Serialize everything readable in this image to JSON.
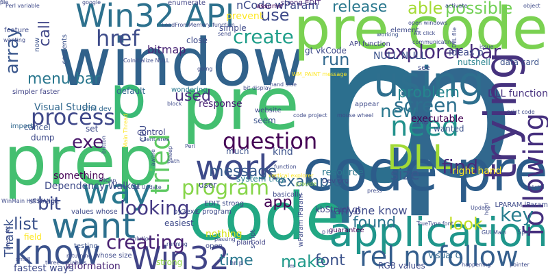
{
  "colors": {
    "background": "#ffffff",
    "palette": [
      "#440154",
      "#472d7b",
      "#3b528b",
      "#2c728e",
      "#21918c",
      "#28ae80",
      "#5ec962",
      "#addc30",
      "#fde725"
    ]
  },
  "words": [
    {
      "text": "p",
      "color": "#2c6f8e"
    },
    {
      "text": "p",
      "color": "#31688e"
    },
    {
      "text": "window",
      "color": "#31628b"
    },
    {
      "text": "code",
      "color": "#22a884"
    },
    {
      "text": "prep",
      "color": "#44bf70"
    },
    {
      "text": "pre code",
      "color": "#7ad151"
    },
    {
      "text": "pre",
      "color": "#44bf70"
    },
    {
      "text": "p",
      "color": "#3aba76"
    },
    {
      "text": "code pre",
      "color": "#2c5c8a"
    },
    {
      "text": "application",
      "color": "#1f968b"
    },
    {
      "text": "Win32 API",
      "color": "#2d718e"
    },
    {
      "text": "using",
      "color": "#2e6f8e"
    },
    {
      "text": "want",
      "color": "#2d708e"
    },
    {
      "text": "work",
      "color": "#3e4a89"
    },
    {
      "text": "know",
      "color": "#3b528b"
    },
    {
      "text": "way",
      "color": "#2a788e"
    },
    {
      "text": "DLL",
      "color": "#a2da37"
    },
    {
      "text": "trying",
      "color": "#46327e"
    },
    {
      "text": "Win32",
      "color": "#414487"
    },
    {
      "text": "rel nofollow",
      "color": "#355f8d"
    },
    {
      "text": "href",
      "color": "#3e4c8a"
    },
    {
      "text": "process",
      "color": "#3f4889"
    },
    {
      "text": "program",
      "color": "#86d549"
    },
    {
      "text": "tried",
      "color": "#5ec962"
    },
    {
      "text": "explorer bar",
      "color": "#472c7a"
    },
    {
      "text": "array",
      "color": "#39568c"
    },
    {
      "text": "need",
      "color": "#21918c"
    },
    {
      "text": "question",
      "color": "#440154"
    },
    {
      "text": "creating",
      "color": "#482071"
    },
    {
      "text": "following",
      "color": "#46307e"
    },
    {
      "text": "looking",
      "color": "#443983"
    },
    {
      "text": "create",
      "color": "#1f9e89"
    },
    {
      "text": "find",
      "color": "#472c7a"
    },
    {
      "text": "list",
      "color": "#3b528b"
    },
    {
      "text": "bit",
      "color": "#3e4a89"
    },
    {
      "text": "key",
      "color": "#287d8e"
    },
    {
      "text": "screen",
      "color": "#2d708e"
    },
    {
      "text": "exe",
      "color": "#48186a"
    },
    {
      "text": "menu bar",
      "color": "#2a778e"
    },
    {
      "text": "able",
      "color": "#a5db36"
    },
    {
      "text": "possible",
      "color": "#73d056"
    },
    {
      "text": "run",
      "color": "#31688e"
    },
    {
      "text": "use",
      "color": "#3e4a89"
    },
    {
      "text": "call",
      "color": "#404688"
    },
    {
      "text": "new",
      "color": "#2a788e"
    },
    {
      "text": "message",
      "color": "#375a8c"
    },
    {
      "text": "example",
      "color": "#33638d"
    },
    {
      "text": "size",
      "color": "#38588c"
    },
    {
      "text": "app",
      "color": "#440154"
    },
    {
      "text": "look",
      "color": "#c2df23"
    },
    {
      "text": "found",
      "color": "#2c728e"
    },
    {
      "text": "used",
      "color": "#46307e"
    },
    {
      "text": "problem",
      "color": "#25858e"
    },
    {
      "text": "make",
      "color": "#1f9a8a"
    },
    {
      "text": "font",
      "color": "#3b528b"
    },
    {
      "text": "time",
      "color": "#2a788e"
    },
    {
      "text": "release",
      "color": "#2a788e"
    },
    {
      "text": "bitmap",
      "color": "#482475"
    },
    {
      "text": "Thank",
      "color": "#3b528b"
    },
    {
      "text": "Dependency Walker",
      "color": "#3e4a89"
    },
    {
      "text": "anyone know",
      "color": "#3e4a89"
    },
    {
      "text": "information",
      "color": "#482475"
    },
    {
      "text": "Visual Studio",
      "color": "#31688e"
    },
    {
      "text": "system tray",
      "color": "#277f8e"
    },
    {
      "text": "strong EDIT",
      "color": "#482173"
    },
    {
      "text": "API function",
      "color": "#414487"
    },
    {
      "text": "NULL NULL",
      "color": "#3b528b"
    },
    {
      "text": "ideas p",
      "color": "#3e4a89"
    },
    {
      "text": "nutshell",
      "color": "#26828e"
    },
    {
      "text": "data card",
      "color": "#3b528b"
    },
    {
      "text": "kbStruct gt",
      "color": "#414487"
    },
    {
      "text": "LPARAM lParam",
      "color": "#3e4a89"
    },
    {
      "text": "resource",
      "color": "#2a788e"
    },
    {
      "text": "DLL function",
      "color": "#46307e"
    },
    {
      "text": "Spy",
      "color": "#3b528b"
    },
    {
      "text": "guarantee",
      "color": "#440154"
    },
    {
      "text": "plain old",
      "color": "#414487"
    },
    {
      "text": "Visual C",
      "color": "#31688e"
    },
    {
      "text": "fastest ways",
      "color": "#3e4a89"
    },
    {
      "text": "testing",
      "color": "#3b528b"
    },
    {
      "text": "nCode wParam",
      "color": "#3e4a89"
    },
    {
      "text": "prevent",
      "color": "#fde725"
    },
    {
      "text": "strong",
      "color": "#90d743"
    },
    {
      "text": "field",
      "color": "#fde725"
    },
    {
      "text": "nothing",
      "color": "#d8e219"
    },
    {
      "text": "much",
      "color": "#3b528b"
    },
    {
      "text": "seem",
      "color": "#3b528b"
    },
    {
      "text": "kind",
      "color": "#3b528b"
    },
    {
      "text": "something",
      "color": "#440154"
    },
    {
      "text": "user",
      "color": "#3e4a89"
    },
    {
      "text": "set",
      "color": "#3e4a89"
    },
    {
      "text": "control",
      "color": "#404688"
    },
    {
      "text": "default",
      "color": "#31688e"
    },
    {
      "text": "cancel",
      "color": "#3b528b"
    },
    {
      "text": "dump",
      "color": "#3e4a89"
    },
    {
      "text": "wondering",
      "color": "#2a788e"
    },
    {
      "text": "response",
      "color": "#482173"
    },
    {
      "text": "simple",
      "color": "#3e4a89"
    },
    {
      "text": "close",
      "color": "#3e4a89"
    },
    {
      "text": "assume",
      "color": "#440154"
    },
    {
      "text": "gt vkCode",
      "color": "#3e4a89"
    },
    {
      "text": "working",
      "color": "#3b528b"
    },
    {
      "text": "website",
      "color": "#3e4a89"
    },
    {
      "text": "Dev org",
      "color": "#3e4a89"
    },
    {
      "text": "executable",
      "color": "#440154"
    },
    {
      "text": "wanted",
      "color": "#3b528b"
    },
    {
      "text": "right hand",
      "color": "#fde725"
    },
    {
      "text": "provide",
      "color": "#8fd744"
    },
    {
      "text": "TrueType font",
      "color": "#3e4a89"
    },
    {
      "text": "RGB values",
      "color": "#3e4a89"
    },
    {
      "text": "enumerate",
      "color": "#414487"
    },
    {
      "text": "CoInitialize NULL",
      "color": "#3e4a89"
    },
    {
      "text": "now",
      "color": "#3b528b"
    },
    {
      "text": "contents",
      "color": "#3b528b"
    },
    {
      "text": "sfml dev",
      "color": "#31688e"
    },
    {
      "text": "import",
      "color": "#31688e"
    },
    {
      "text": "client area",
      "color": "#3b528b"
    },
    {
      "text": "simpler faster",
      "color": "#414487"
    },
    {
      "text": "sf Image",
      "color": "#3e4a89"
    },
    {
      "text": "values whose",
      "color": "#3e4a89"
    },
    {
      "text": "easiest",
      "color": "#3e4a89"
    },
    {
      "text": "solution",
      "color": "#414487"
    },
    {
      "text": "running",
      "color": "#3e4a89"
    },
    {
      "text": "whose size",
      "color": "#3e4a89"
    },
    {
      "text": "py2exe",
      "color": "#3e4a89"
    },
    {
      "text": "C program",
      "color": "#3e4a89"
    },
    {
      "text": "EDIT strong",
      "color": "#3e4a89"
    },
    {
      "text": "basically",
      "color": "#3e4a89"
    },
    {
      "text": "appear",
      "color": "#3e4a89"
    },
    {
      "text": "see",
      "color": "#3e4a89"
    },
    {
      "text": "feature",
      "color": "#3e4a89"
    },
    {
      "text": "open",
      "color": "#3e4a89"
    },
    {
      "text": "hr p",
      "color": "#3e4a89"
    },
    {
      "text": "p hr",
      "color": "#3e4a89"
    },
    {
      "text": "script",
      "color": "#3e4a89"
    },
    {
      "text": "match",
      "color": "#3e4a89"
    },
    {
      "text": "small",
      "color": "#3e4a89"
    },
    {
      "text": "element",
      "color": "#3e4a89"
    },
    {
      "text": "send",
      "color": "#3e4a89"
    },
    {
      "text": "CPU",
      "color": "#3e4a89"
    },
    {
      "text": "aware",
      "color": "#3e4a89"
    },
    {
      "text": "sleep",
      "color": "#3e4a89"
    },
    {
      "text": "bit display",
      "color": "#3e4a89"
    },
    {
      "text": "Main Thread",
      "color": "#fde725"
    },
    {
      "text": "wParam lParam",
      "color": "#3e4a89"
    },
    {
      "text": "function",
      "color": "#3e4a89"
    },
    {
      "text": "vertical explorer",
      "color": "#fde725"
    },
    {
      "text": "hand side",
      "color": "#3e4a89"
    },
    {
      "text": "Perl variable",
      "color": "#3e4a89"
    },
    {
      "text": "object",
      "color": "#3e4a89"
    },
    {
      "text": "issue",
      "color": "#3e4a89"
    },
    {
      "text": "going",
      "color": "#3e4a89"
    },
    {
      "text": "block",
      "color": "#3e4a89"
    },
    {
      "text": "pointer",
      "color": "#3e4a89"
    },
    {
      "text": "happening",
      "color": "#3e4a89"
    },
    {
      "text": "press",
      "color": "#3e4a89"
    },
    {
      "text": "mouse wheel",
      "color": "#3e4a89"
    },
    {
      "text": "amp",
      "color": "#3e4a89"
    },
    {
      "text": "google",
      "color": "#3e4a89"
    },
    {
      "text": "button",
      "color": "#3e4a89"
    },
    {
      "text": "AllCap",
      "color": "#3e4a89"
    },
    {
      "text": "WM_PAINT message",
      "color": "#fde725"
    },
    {
      "text": "code project",
      "color": "#3e4a89"
    },
    {
      "text": "print code",
      "color": "#3e4a89"
    },
    {
      "text": "DLL file",
      "color": "#3e4a89"
    },
    {
      "text": "communicating",
      "color": "#3e4a89"
    },
    {
      "text": "Alt click",
      "color": "#3e4a89"
    },
    {
      "text": "open windows",
      "color": "#3e4a89"
    },
    {
      "text": "LoadFromMemory function",
      "color": "#3e4a89"
    },
    {
      "text": "activate",
      "color": "#3e4a89"
    },
    {
      "text": "WinMain HINSTANCE",
      "color": "#3e4a89"
    },
    {
      "text": "press Alt",
      "color": "#3e4a89"
    },
    {
      "text": "three variables",
      "color": "#3e4a89"
    },
    {
      "text": "returning",
      "color": "#3e4a89"
    },
    {
      "text": "passing",
      "color": "#3e4a89"
    },
    {
      "text": "wanting",
      "color": "#3e4a89"
    },
    {
      "text": "GUI Main",
      "color": "#3e4a89"
    },
    {
      "text": "hctrl",
      "color": "#3e4a89"
    },
    {
      "text": "Update",
      "color": "#3e4a89"
    },
    {
      "text": "path",
      "color": "#3e4a89"
    },
    {
      "text": "gt Update",
      "color": "#3e4a89"
    },
    {
      "text": "Perl",
      "color": "#3e4a89"
    },
    {
      "text": "im",
      "color": "#3e4a89"
    },
    {
      "text": "file",
      "color": "#3e4a89"
    },
    {
      "text": "pic",
      "color": "#3e4a89"
    }
  ]
}
